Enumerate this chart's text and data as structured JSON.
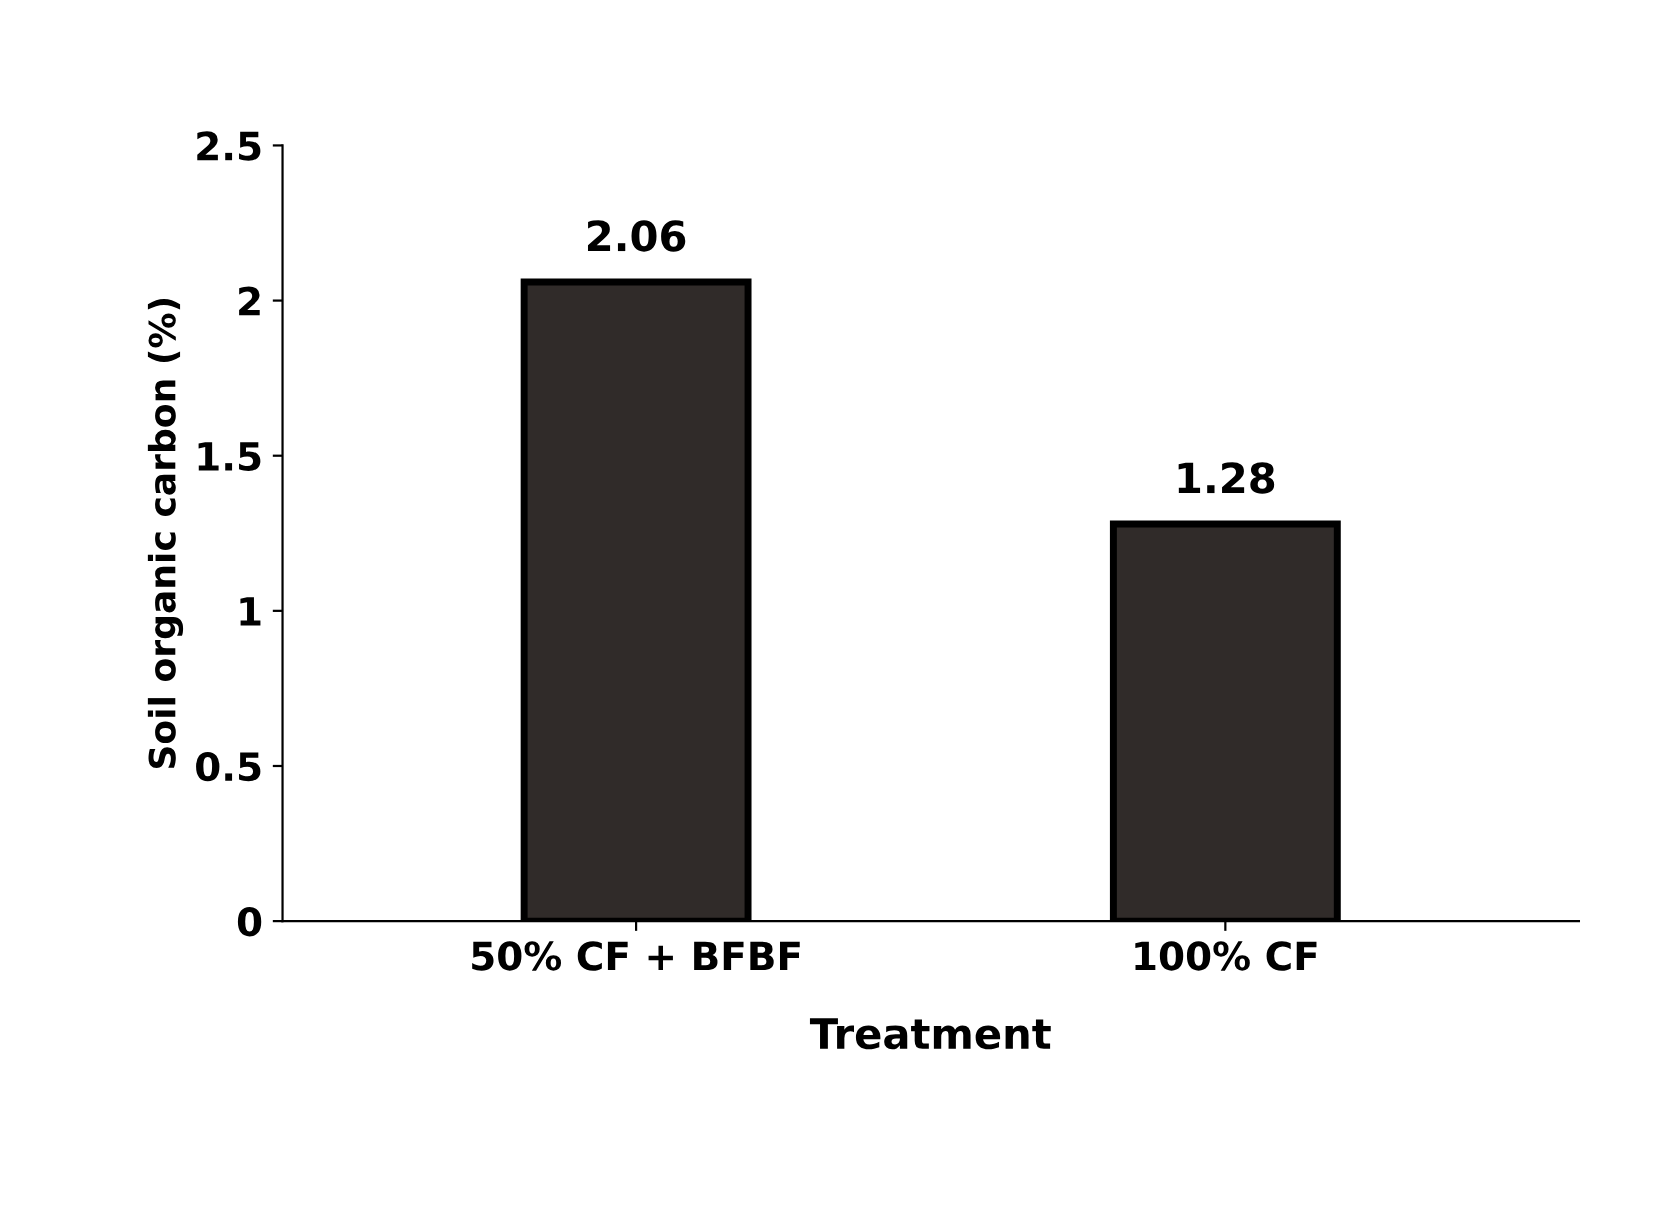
{
  "chart_data": {
    "type": "bar",
    "xlabel": "Treatment",
    "ylabel": "Soil organic carbon (%)",
    "categories": [
      "50% CF + BFBF",
      "100% CF"
    ],
    "values": [
      2.06,
      1.28
    ],
    "color": "#302b29",
    "ylim": [
      0,
      2.5
    ],
    "yticks": [
      0,
      {
        "value": 0.5,
        "label": "0.5"
      },
      1,
      {
        "value": 1.5,
        "label": "1.5"
      },
      2,
      {
        "value": 2.5,
        "label": "2.5"
      }
    ],
    "data_labels": true,
    "grid": false
  }
}
